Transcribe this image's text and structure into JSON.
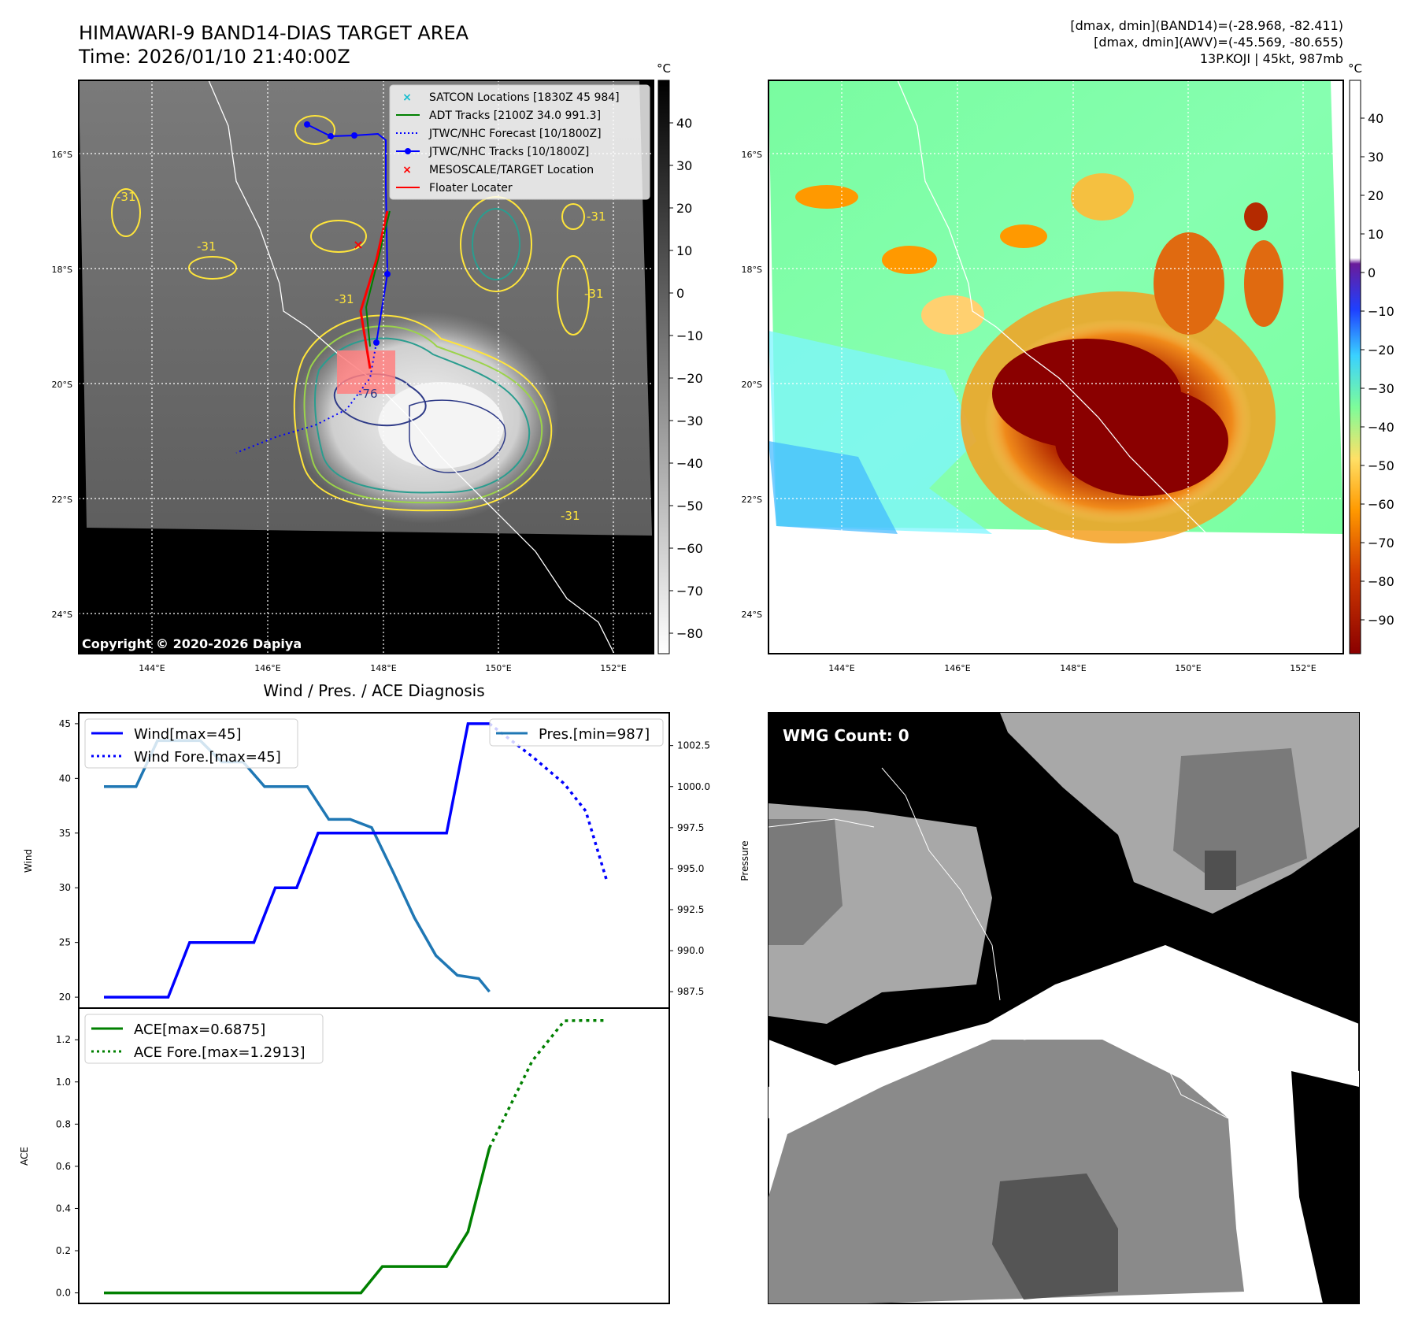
{
  "header": {
    "title_line1": "HIMAWARI-9 BAND14-DIAS TARGET AREA",
    "title_line2": "Time: 2026/01/10 21:40:00Z",
    "right_line1": "[dmax, dmin](BAND14)=(-28.968, -82.411)",
    "right_line2": "[dmax, dmin](AWV)=(-45.569, -80.655)",
    "right_line3": "13P.KOJI | 45kt, 987mb"
  },
  "map_axes": {
    "lat_ticks": [
      "16°S",
      "18°S",
      "20°S",
      "22°S",
      "24°S"
    ],
    "lon_ticks": [
      "144°E",
      "146°E",
      "148°E",
      "150°E",
      "152°E"
    ]
  },
  "top_left": {
    "copyright": "Copyright © 2020-2026 Dapiya",
    "contour_labels": [
      "-31",
      "-31",
      "-31",
      "-31",
      "-31",
      "-31",
      "-76"
    ],
    "legend": [
      {
        "label": "SATCON Locations [1830Z 45 984]",
        "color": "#17becf"
      },
      {
        "label": "ADT Tracks [2100Z 34.0 991.3]",
        "color": "#008000"
      },
      {
        "label": "JTWC/NHC Forecast [10/1800Z]",
        "color": "#0000ff"
      },
      {
        "label": "JTWC/NHC Tracks [10/1800Z]",
        "color": "#0000ff"
      },
      {
        "label": "MESOSCALE/TARGET Location",
        "color": "#ff0000"
      },
      {
        "label": "Floater Locater",
        "color": "#ff0000"
      }
    ],
    "colorbar": {
      "unit": "°C",
      "ticks": [
        "40",
        "30",
        "20",
        "10",
        "0",
        "−10",
        "−20",
        "−30",
        "−40",
        "−50",
        "−60",
        "−70",
        "−80"
      ]
    }
  },
  "top_right": {
    "colorbar": {
      "unit": "°C",
      "ticks": [
        "40",
        "30",
        "20",
        "10",
        "0",
        "−10",
        "−20",
        "−30",
        "−40",
        "−50",
        "−60",
        "−70",
        "−80",
        "−90"
      ]
    }
  },
  "bottom_right": {
    "label": "WMG Count: 0"
  },
  "chart_data": {
    "type": "line",
    "title": "Wind / Pres. / ACE Diagnosis",
    "wind": {
      "ylabel": "Wind",
      "ylim": [
        19,
        46
      ],
      "ticks": [
        "20",
        "25",
        "30",
        "35",
        "40",
        "45"
      ],
      "legend": [
        {
          "name": "Wind[max=45]",
          "color": "#0000ff",
          "style": "solid"
        },
        {
          "name": "Wind Fore.[max=45]",
          "color": "#0000ff",
          "style": "dotted"
        }
      ],
      "observed": {
        "x": [
          0,
          3,
          4,
          5,
          7,
          8,
          9,
          10,
          11,
          12,
          13,
          14,
          15,
          16,
          17,
          18
        ],
        "y": [
          20,
          20,
          25,
          25,
          25,
          30,
          30,
          35,
          35,
          35,
          35,
          35,
          35,
          35,
          45,
          45
        ]
      },
      "forecast": {
        "x": [
          18,
          20,
          21.5,
          22.5,
          23.5
        ],
        "y": [
          45,
          42,
          39.5,
          37,
          30.5
        ]
      }
    },
    "pressure": {
      "ylabel": "Pressure",
      "ylim": [
        986.5,
        1004.5
      ],
      "ticks": [
        "1002.5",
        "1000.0",
        "997.5",
        "995.0",
        "992.5",
        "990.0",
        "987.5"
      ],
      "legend": [
        {
          "name": "Pres.[min=987]",
          "color": "#1f77b4",
          "style": "solid"
        }
      ],
      "x": [
        0,
        1,
        1.5,
        2.5,
        3.5,
        4.5,
        5.5,
        6.5,
        7.5,
        8.5,
        9.5,
        10.5,
        11.5,
        12.5,
        13.5,
        14.5,
        15.5,
        16.5,
        17.5,
        18
      ],
      "y": [
        1000,
        1000,
        1000,
        1002.8,
        1002.8,
        1002.8,
        1001.5,
        1001.5,
        1000,
        1000,
        1000,
        998,
        998,
        997.5,
        994.8,
        992,
        989.7,
        988.5,
        988.3,
        987.5
      ]
    },
    "ace": {
      "ylabel": "ACE",
      "ylim": [
        -0.05,
        1.35
      ],
      "ticks": [
        "0.0",
        "0.2",
        "0.4",
        "0.6",
        "0.8",
        "1.0",
        "1.2"
      ],
      "legend": [
        {
          "name": "ACE[max=0.6875]",
          "color": "#008000",
          "style": "solid"
        },
        {
          "name": "ACE Fore.[max=1.2913]",
          "color": "#008000",
          "style": "dotted"
        }
      ],
      "observed": {
        "x": [
          0,
          12,
          13,
          16,
          17,
          18
        ],
        "y": [
          0,
          0,
          0.125,
          0.125,
          0.29,
          0.6875
        ]
      },
      "forecast": {
        "x": [
          18,
          20,
          21.5,
          22.5,
          23.5
        ],
        "y": [
          0.6875,
          1.1,
          1.29,
          1.2913,
          1.2913
        ]
      }
    }
  }
}
